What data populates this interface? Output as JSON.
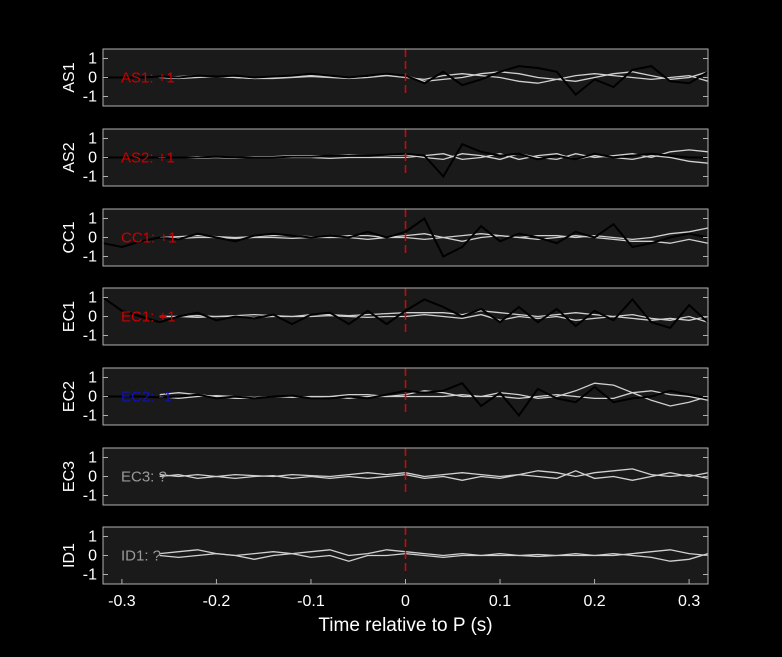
{
  "chart_data": [
    {
      "type": "line",
      "ylabel": "AS1",
      "annotation": "AS1: +1",
      "annotation_color": "#cc0000",
      "marker_x": 0,
      "marker_color": "#e00000",
      "x": [
        -0.32,
        -0.3,
        -0.28,
        -0.26,
        -0.24,
        -0.22,
        -0.2,
        -0.18,
        -0.16,
        -0.14,
        -0.12,
        -0.1,
        -0.08,
        -0.06,
        -0.04,
        -0.02,
        0,
        0.02,
        0.04,
        0.06,
        0.08,
        0.1,
        0.12,
        0.14,
        0.16,
        0.18,
        0.2,
        0.22,
        0.24,
        0.26,
        0.28,
        0.3,
        0.32
      ],
      "xlim": [
        -0.32,
        0.32
      ],
      "ylim": [
        -1.5,
        1.5
      ],
      "yticks": [
        -1,
        0,
        1
      ],
      "series": [
        {
          "color": "#d0d0d0",
          "values": [
            null,
            null,
            null,
            0,
            0.05,
            0.1,
            0.05,
            0,
            -0.05,
            0,
            0.05,
            0.1,
            0.05,
            0,
            0.1,
            0.15,
            0.1,
            -0.2,
            -0.1,
            0,
            0.2,
            0.3,
            0.2,
            0,
            -0.1,
            -0.2,
            0,
            0.2,
            0.3,
            0.1,
            -0.1,
            0,
            0.3
          ]
        },
        {
          "color": "#d0d0d0",
          "values": [
            null,
            null,
            null,
            0,
            -0.05,
            0,
            0.05,
            0,
            -0.05,
            -0.05,
            0,
            0.05,
            0,
            -0.05,
            0,
            0.1,
            0,
            -0.1,
            0.1,
            0.2,
            0.1,
            0,
            -0.2,
            -0.3,
            -0.1,
            0.1,
            0.2,
            0.1,
            0,
            -0.1,
            0,
            0.1,
            -0.2
          ]
        },
        {
          "color": "#000000",
          "values": [
            0,
            0,
            0,
            0.05,
            0,
            0.1,
            0.05,
            0.1,
            0,
            0.05,
            0.1,
            0.2,
            0.1,
            0,
            0.1,
            0.2,
            0.1,
            -0.3,
            0.3,
            -0.4,
            -0.1,
            0.3,
            0.6,
            0.5,
            0.3,
            -0.9,
            -0.1,
            -0.5,
            0.4,
            0.6,
            -0.2,
            -0.3,
            0.3
          ]
        }
      ]
    },
    {
      "type": "line",
      "ylabel": "AS2",
      "annotation": "AS2: +1",
      "annotation_color": "#cc0000",
      "marker_x": 0,
      "marker_color": "#e00000",
      "x": [
        -0.32,
        -0.3,
        -0.28,
        -0.26,
        -0.24,
        -0.22,
        -0.2,
        -0.18,
        -0.16,
        -0.14,
        -0.12,
        -0.1,
        -0.08,
        -0.06,
        -0.04,
        -0.02,
        0,
        0.02,
        0.04,
        0.06,
        0.08,
        0.1,
        0.12,
        0.14,
        0.16,
        0.18,
        0.2,
        0.22,
        0.24,
        0.26,
        0.28,
        0.3,
        0.32
      ],
      "xlim": [
        -0.32,
        0.32
      ],
      "ylim": [
        -1.5,
        1.5
      ],
      "yticks": [
        -1,
        0,
        1
      ],
      "series": [
        {
          "color": "#d0d0d0",
          "values": [
            null,
            null,
            null,
            0,
            0,
            0.05,
            0,
            0,
            0.05,
            0.05,
            0.1,
            0.1,
            0.1,
            0.15,
            0.1,
            0.1,
            0.15,
            0,
            -0.1,
            0.2,
            0.1,
            -0.1,
            0.2,
            0,
            -0.1,
            0.2,
            0,
            0.1,
            0.2,
            0,
            0.3,
            0.4,
            0.3
          ]
        },
        {
          "color": "#d0d0d0",
          "values": [
            null,
            null,
            null,
            0,
            0,
            -0.05,
            0,
            -0.05,
            0,
            0,
            0,
            0,
            -0.05,
            0,
            0,
            0,
            0,
            0.1,
            0.2,
            -0.1,
            0,
            0.2,
            -0.1,
            0.1,
            0.2,
            -0.1,
            0.1,
            0,
            -0.1,
            0.1,
            0,
            -0.2,
            -0.3
          ]
        },
        {
          "color": "#000000",
          "values": [
            0,
            0,
            0,
            0,
            0,
            0,
            0.05,
            0,
            0,
            0,
            0.05,
            0.05,
            0.1,
            0.1,
            0.1,
            0.15,
            0.2,
            0.1,
            -1.0,
            0.7,
            0.3,
            0.1,
            0.2,
            -0.1,
            0.1,
            -0.1,
            0.2,
            0,
            0.1,
            0.2,
            0.1,
            0,
            0
          ]
        }
      ]
    },
    {
      "type": "line",
      "ylabel": "CC1",
      "annotation": "CC1: +1",
      "annotation_color": "#cc0000",
      "marker_x": 0,
      "marker_color": "#e00000",
      "x": [
        -0.32,
        -0.3,
        -0.28,
        -0.26,
        -0.24,
        -0.22,
        -0.2,
        -0.18,
        -0.16,
        -0.14,
        -0.12,
        -0.1,
        -0.08,
        -0.06,
        -0.04,
        -0.02,
        0,
        0.02,
        0.04,
        0.06,
        0.08,
        0.1,
        0.12,
        0.14,
        0.16,
        0.18,
        0.2,
        0.22,
        0.24,
        0.26,
        0.28,
        0.3,
        0.32
      ],
      "xlim": [
        -0.32,
        0.32
      ],
      "ylim": [
        -1.5,
        1.5
      ],
      "yticks": [
        -1,
        0,
        1
      ],
      "series": [
        {
          "color": "#d0d0d0",
          "values": [
            null,
            null,
            null,
            0,
            0.05,
            0.1,
            0.05,
            0,
            0.05,
            0.1,
            0.1,
            0.05,
            0,
            0.1,
            0.1,
            0,
            0.1,
            0.2,
            0,
            0.1,
            0.2,
            0.1,
            0,
            0.1,
            0.1,
            0,
            0.1,
            0,
            -0.1,
            0,
            0.2,
            0.3,
            0.5
          ]
        },
        {
          "color": "#d0d0d0",
          "values": [
            null,
            null,
            null,
            0,
            -0.05,
            0,
            0,
            -0.05,
            0,
            0,
            -0.05,
            0,
            0,
            0,
            -0.1,
            0,
            0,
            -0.1,
            0,
            -0.2,
            0,
            0.1,
            0,
            -0.1,
            0,
            0.1,
            0,
            -0.1,
            -0.2,
            -0.2,
            -0.3,
            -0.1,
            -0.3
          ]
        },
        {
          "color": "#000000",
          "values": [
            -0.3,
            -0.5,
            -0.2,
            0,
            -0.1,
            0.2,
            0,
            -0.2,
            0.1,
            0.2,
            0.1,
            0,
            0.1,
            0,
            0.3,
            0,
            0.3,
            1.0,
            -1.0,
            -0.5,
            0.6,
            -0.2,
            0.2,
            0,
            -0.3,
            0.3,
            0,
            0.7,
            -0.5,
            -0.3,
            0,
            0.2,
            0
          ]
        }
      ]
    },
    {
      "type": "line",
      "ylabel": "EC1",
      "annotation": "EC1: +1",
      "annotation_color": "#cc0000",
      "marker_x": 0,
      "marker_color": "#e00000",
      "x": [
        -0.32,
        -0.3,
        -0.28,
        -0.26,
        -0.24,
        -0.22,
        -0.2,
        -0.18,
        -0.16,
        -0.14,
        -0.12,
        -0.1,
        -0.08,
        -0.06,
        -0.04,
        -0.02,
        0,
        0.02,
        0.04,
        0.06,
        0.08,
        0.1,
        0.12,
        0.14,
        0.16,
        0.18,
        0.2,
        0.22,
        0.24,
        0.26,
        0.28,
        0.3,
        0.32
      ],
      "xlim": [
        -0.32,
        0.32
      ],
      "ylim": [
        -1.5,
        1.5
      ],
      "yticks": [
        -1,
        0,
        1
      ],
      "series": [
        {
          "color": "#d0d0d0",
          "values": [
            null,
            null,
            null,
            0,
            0,
            0.05,
            0,
            0.05,
            0.1,
            0.05,
            0,
            0.1,
            0.1,
            0.05,
            0.1,
            0.15,
            0.2,
            0.2,
            0.2,
            0.1,
            0.3,
            0.2,
            0.1,
            0,
            0.1,
            0.2,
            0.1,
            0,
            0.1,
            -0.1,
            -0.2,
            0,
            -0.3
          ]
        },
        {
          "color": "#d0d0d0",
          "values": [
            null,
            null,
            null,
            0,
            0,
            -0.05,
            0,
            0,
            -0.05,
            0,
            0,
            0,
            0.05,
            0,
            -0.05,
            0,
            0,
            0.1,
            0,
            -0.1,
            0.1,
            -0.2,
            0,
            -0.1,
            0,
            -0.2,
            -0.1,
            0,
            -0.1,
            -0.2,
            -0.1,
            -0.2,
            0
          ]
        },
        {
          "color": "#000000",
          "values": [
            1.0,
            0.3,
            0,
            -0.3,
            0,
            0.2,
            -0.2,
            0,
            -0.1,
            0.1,
            -0.4,
            0.1,
            0.2,
            -0.4,
            0.3,
            -0.4,
            0.3,
            0.9,
            0.5,
            0,
            0.4,
            -0.3,
            0.5,
            -0.3,
            0.4,
            -0.5,
            0.3,
            -0.2,
            0.9,
            -0.3,
            -0.6,
            0.6,
            -0.3
          ]
        }
      ]
    },
    {
      "type": "line",
      "ylabel": "EC2",
      "annotation": "EC2: -1",
      "annotation_color": "#1010c0",
      "marker_x": 0,
      "marker_color": "#e00000",
      "x": [
        -0.32,
        -0.3,
        -0.28,
        -0.26,
        -0.24,
        -0.22,
        -0.2,
        -0.18,
        -0.16,
        -0.14,
        -0.12,
        -0.1,
        -0.08,
        -0.06,
        -0.04,
        -0.02,
        0,
        0.02,
        0.04,
        0.06,
        0.08,
        0.1,
        0.12,
        0.14,
        0.16,
        0.18,
        0.2,
        0.22,
        0.24,
        0.26,
        0.28,
        0.3,
        0.32
      ],
      "xlim": [
        -0.32,
        0.32
      ],
      "ylim": [
        -1.5,
        1.5
      ],
      "yticks": [
        -1,
        0,
        1
      ],
      "series": [
        {
          "color": "#d0d0d0",
          "values": [
            null,
            null,
            null,
            0.1,
            0.2,
            0.1,
            0,
            -0.1,
            -0.1,
            0,
            0,
            -0.05,
            0,
            0.1,
            0.1,
            0,
            0.1,
            0.3,
            0.2,
            0,
            0,
            0.2,
            0.1,
            -0.1,
            0,
            0.3,
            0.7,
            0.6,
            0.2,
            -0.2,
            -0.5,
            -0.3,
            0
          ]
        },
        {
          "color": "#d0d0d0",
          "values": [
            null,
            null,
            null,
            0,
            -0.1,
            0,
            0.05,
            0,
            -0.05,
            0,
            -0.05,
            0,
            0,
            -0.1,
            0,
            0,
            0,
            0,
            0,
            0.1,
            0,
            0,
            -0.1,
            0,
            0.1,
            0,
            -0.1,
            -0.1,
            0.2,
            0.3,
            0.1,
            0,
            -0.2
          ]
        },
        {
          "color": "#000000",
          "values": [
            0,
            0,
            0,
            -0.05,
            0,
            0.1,
            -0.1,
            0,
            -0.1,
            0,
            0.05,
            -0.1,
            -0.1,
            0,
            -0.1,
            0.1,
            0.3,
            0.2,
            0.3,
            0.7,
            -0.5,
            0.2,
            -1.0,
            0.4,
            -0.1,
            -0.3,
            0.5,
            -0.3,
            -0.1,
            0,
            0.3,
            0.1,
            -0.1
          ]
        }
      ]
    },
    {
      "type": "line",
      "ylabel": "EC3",
      "annotation": "EC3: ?",
      "annotation_color": "#9a9a9a",
      "marker_x": 0,
      "marker_color": "#e00000",
      "x": [
        -0.32,
        -0.3,
        -0.28,
        -0.26,
        -0.24,
        -0.22,
        -0.2,
        -0.18,
        -0.16,
        -0.14,
        -0.12,
        -0.1,
        -0.08,
        -0.06,
        -0.04,
        -0.02,
        0,
        0.02,
        0.04,
        0.06,
        0.08,
        0.1,
        0.12,
        0.14,
        0.16,
        0.18,
        0.2,
        0.22,
        0.24,
        0.26,
        0.28,
        0.3,
        0.32
      ],
      "xlim": [
        -0.32,
        0.32
      ],
      "ylim": [
        -1.5,
        1.5
      ],
      "yticks": [
        -1,
        0,
        1
      ],
      "series": [
        {
          "color": "#d0d0d0",
          "values": [
            null,
            null,
            null,
            0.1,
            0,
            0.1,
            0,
            0.1,
            0.05,
            0,
            0.1,
            0.05,
            0,
            0.1,
            0.2,
            0.1,
            0.2,
            0,
            0.1,
            0.2,
            0.1,
            0,
            0.1,
            0.3,
            0.2,
            0,
            0.2,
            0.3,
            0.4,
            0.1,
            0,
            0.1,
            -0.1
          ]
        },
        {
          "color": "#d0d0d0",
          "values": [
            null,
            null,
            null,
            0,
            0.1,
            -0.1,
            0,
            -0.1,
            0,
            0.05,
            -0.1,
            0,
            -0.1,
            0,
            -0.1,
            0,
            0.1,
            -0.1,
            0,
            -0.2,
            0,
            -0.1,
            0.1,
            0,
            -0.1,
            0.3,
            -0.1,
            0,
            -0.2,
            0,
            0.2,
            0,
            0.2
          ]
        }
      ]
    },
    {
      "type": "line",
      "ylabel": "ID1",
      "annotation": "ID1: ?",
      "annotation_color": "#9a9a9a",
      "marker_x": 0,
      "marker_color": "#e00000",
      "x": [
        -0.32,
        -0.3,
        -0.28,
        -0.26,
        -0.24,
        -0.22,
        -0.2,
        -0.18,
        -0.16,
        -0.14,
        -0.12,
        -0.1,
        -0.08,
        -0.06,
        -0.04,
        -0.02,
        0,
        0.02,
        0.04,
        0.06,
        0.08,
        0.1,
        0.12,
        0.14,
        0.16,
        0.18,
        0.2,
        0.22,
        0.24,
        0.26,
        0.28,
        0.3,
        0.32
      ],
      "xlim": [
        -0.32,
        0.32
      ],
      "ylim": [
        -1.5,
        1.5
      ],
      "yticks": [
        -1,
        0,
        1
      ],
      "xticks": [
        -0.3,
        -0.2,
        -0.1,
        0,
        0.1,
        0.2,
        0.3
      ],
      "xlabel": "Time relative to P (s)",
      "series": [
        {
          "color": "#d0d0d0",
          "values": [
            null,
            null,
            null,
            0.1,
            0.2,
            0.3,
            0.1,
            0,
            0.1,
            0.2,
            0.1,
            0.2,
            0.3,
            0,
            0.1,
            0.3,
            0.2,
            0.1,
            0,
            0.1,
            0,
            0.1,
            0,
            0.05,
            0,
            0.1,
            0,
            0,
            0.1,
            0.2,
            0.3,
            0.1,
            0
          ]
        },
        {
          "color": "#d0d0d0",
          "values": [
            null,
            null,
            null,
            0,
            -0.1,
            0,
            0.1,
            0,
            -0.2,
            0,
            0.1,
            -0.1,
            0,
            -0.3,
            0,
            0,
            0.1,
            0,
            -0.1,
            0,
            0,
            0,
            0,
            -0.05,
            0,
            0,
            0,
            0.1,
            0,
            -0.1,
            -0.3,
            -0.2,
            0.1
          ]
        }
      ]
    }
  ]
}
